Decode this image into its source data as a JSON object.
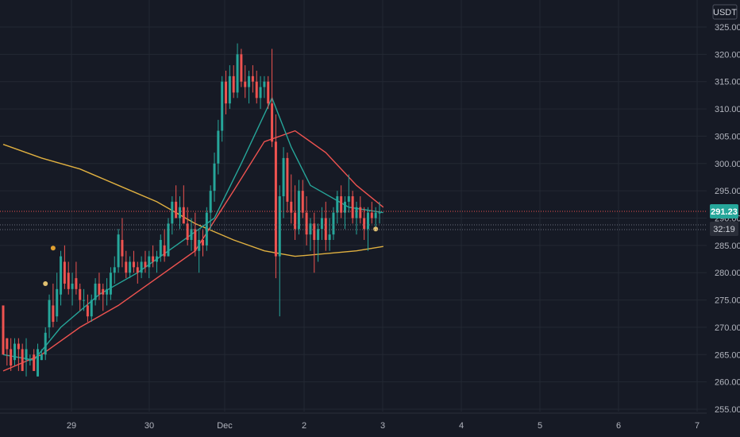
{
  "chart_data": {
    "type": "candlestick",
    "currency": "USDT",
    "ylim": [
      255,
      326
    ],
    "y_ticks": [
      "325.00",
      "320.00",
      "315.00",
      "310.00",
      "305.00",
      "300.00",
      "295.00",
      "290.00",
      "285.00",
      "280.00",
      "275.00",
      "270.00",
      "265.00",
      "260.00",
      "255.00"
    ],
    "x_ticks": [
      "29",
      "30",
      "Dec",
      "2",
      "3",
      "4",
      "5",
      "6",
      "7"
    ],
    "last_price": "291.23",
    "countdown": "32:19",
    "colors": {
      "up": "#26a69a",
      "down": "#ef5350",
      "ma_fast": "#26a69a",
      "ma_mid": "#ef5350",
      "ma_slow": "#e0b040",
      "price_line": "#ef5350",
      "tag_bg": "#26a69a"
    },
    "candles": [
      [
        274.0,
        274.0,
        265.0,
        265.0
      ],
      [
        268.0,
        268.0,
        263.0,
        266.0
      ],
      [
        266.0,
        268.0,
        262.0,
        263.0
      ],
      [
        264.0,
        268.0,
        263.0,
        267.0
      ],
      [
        267.0,
        268.0,
        262.0,
        266.0
      ],
      [
        266.0,
        267.0,
        262.0,
        262.0
      ],
      [
        264.0,
        268.0,
        261.0,
        266.0
      ],
      [
        264.0,
        265.0,
        263.0,
        264.0
      ],
      [
        265.0,
        266.0,
        262.0,
        262.0
      ],
      [
        261.0,
        267.0,
        261.0,
        266.0
      ],
      [
        264.0,
        266.0,
        264.0,
        265.0
      ],
      [
        265.0,
        270.0,
        264.0,
        269.0
      ],
      [
        270.0,
        276.0,
        268.0,
        275.0
      ],
      [
        274.0,
        278.0,
        270.0,
        271.0
      ],
      [
        272.0,
        280.0,
        271.0,
        277.0
      ],
      [
        276.0,
        284.0,
        274.0,
        283.0
      ],
      [
        282.0,
        285.0,
        277.0,
        278.0
      ],
      [
        280.0,
        282.0,
        276.0,
        277.0
      ],
      [
        277.0,
        280.0,
        274.0,
        278.0
      ],
      [
        279.0,
        282.0,
        276.0,
        277.0
      ],
      [
        277.0,
        278.0,
        273.0,
        275.0
      ],
      [
        275.0,
        277.0,
        273.0,
        275.0
      ],
      [
        274.0,
        276.0,
        271.0,
        272.0
      ],
      [
        272.0,
        276.0,
        271.0,
        275.0
      ],
      [
        275.0,
        279.0,
        274.0,
        278.0
      ],
      [
        278.0,
        280.0,
        275.0,
        276.0
      ],
      [
        277.0,
        278.0,
        273.0,
        276.0
      ],
      [
        276.0,
        279.0,
        274.0,
        277.0
      ],
      [
        276.0,
        281.0,
        275.0,
        280.0
      ],
      [
        280.0,
        283.0,
        278.0,
        281.0
      ],
      [
        281.0,
        288.0,
        280.0,
        287.0
      ],
      [
        286.0,
        290.0,
        281.0,
        283.0
      ],
      [
        282.0,
        284.0,
        279.0,
        280.0
      ],
      [
        280.0,
        283.0,
        279.0,
        282.0
      ],
      [
        282.0,
        284.0,
        280.0,
        281.0
      ],
      [
        281.0,
        282.0,
        278.0,
        280.0
      ],
      [
        280.0,
        283.0,
        279.0,
        282.0
      ],
      [
        282.0,
        284.0,
        280.0,
        281.0
      ],
      [
        281.0,
        284.0,
        279.0,
        283.0
      ],
      [
        283.0,
        285.0,
        281.0,
        282.0
      ],
      [
        282.0,
        284.0,
        280.0,
        283.0
      ],
      [
        283.0,
        287.0,
        282.0,
        286.0
      ],
      [
        285.0,
        288.0,
        282.0,
        283.0
      ],
      [
        283.0,
        290.0,
        283.0,
        289.0
      ],
      [
        289.0,
        294.0,
        287.0,
        293.0
      ],
      [
        293.0,
        296.0,
        290.0,
        290.0
      ],
      [
        290.0,
        294.0,
        288.0,
        292.0
      ],
      [
        292.0,
        296.0,
        289.0,
        289.0
      ],
      [
        289.0,
        292.0,
        285.0,
        286.0
      ],
      [
        286.0,
        290.0,
        284.0,
        288.0
      ],
      [
        288.0,
        291.0,
        283.0,
        284.0
      ],
      [
        284.0,
        288.0,
        280.0,
        286.0
      ],
      [
        286.0,
        288.0,
        283.0,
        285.0
      ],
      [
        285.0,
        292.0,
        284.0,
        291.0
      ],
      [
        291.0,
        296.0,
        288.0,
        295.0
      ],
      [
        295.0,
        302.0,
        293.0,
        300.0
      ],
      [
        300.0,
        308.0,
        298.0,
        306.0
      ],
      [
        306.0,
        316.0,
        304.0,
        315.0
      ],
      [
        315.0,
        317.0,
        309.0,
        311.0
      ],
      [
        311.0,
        318.0,
        310.0,
        316.0
      ],
      [
        316.0,
        318.0,
        312.0,
        313.0
      ],
      [
        313.0,
        322.0,
        312.0,
        320.0
      ],
      [
        320.0,
        321.0,
        314.0,
        315.0
      ],
      [
        315.0,
        318.0,
        312.0,
        314.0
      ],
      [
        314.0,
        317.0,
        311.0,
        316.0
      ],
      [
        316.0,
        318.0,
        313.0,
        315.0
      ],
      [
        315.0,
        317.0,
        311.0,
        312.0
      ],
      [
        312.0,
        316.0,
        310.0,
        314.0
      ],
      [
        314.0,
        316.0,
        312.0,
        315.0
      ],
      [
        315.0,
        316.0,
        310.0,
        311.0
      ],
      [
        311.0,
        321.0,
        303.0,
        304.0
      ],
      [
        304.0,
        309.0,
        279.0,
        283.0
      ],
      [
        283.0,
        296.0,
        272.0,
        294.0
      ],
      [
        294.0,
        303.0,
        290.0,
        301.0
      ],
      [
        301.0,
        302.0,
        291.0,
        293.0
      ],
      [
        293.0,
        298.0,
        289.0,
        291.0
      ],
      [
        291.0,
        296.0,
        286.0,
        288.0
      ],
      [
        288.0,
        297.0,
        287.0,
        295.0
      ],
      [
        295.0,
        297.0,
        290.0,
        291.0
      ],
      [
        291.0,
        294.0,
        285.0,
        287.0
      ],
      [
        287.0,
        290.0,
        284.0,
        289.0
      ],
      [
        289.0,
        291.0,
        280.0,
        286.0
      ],
      [
        286.0,
        289.0,
        282.0,
        288.0
      ],
      [
        288.0,
        292.0,
        286.0,
        290.0
      ],
      [
        290.0,
        293.0,
        284.0,
        286.0
      ],
      [
        286.0,
        290.0,
        284.0,
        287.0
      ],
      [
        287.0,
        292.0,
        286.0,
        291.0
      ],
      [
        291.0,
        295.0,
        289.0,
        294.0
      ],
      [
        294.0,
        296.0,
        290.0,
        291.0
      ],
      [
        291.0,
        294.0,
        288.0,
        293.0
      ],
      [
        293.0,
        298.0,
        291.0,
        294.0
      ],
      [
        294.0,
        295.0,
        289.0,
        290.0
      ],
      [
        290.0,
        293.0,
        287.0,
        292.0
      ],
      [
        292.0,
        294.0,
        289.0,
        290.0
      ],
      [
        290.0,
        292.0,
        286.0,
        288.0
      ],
      [
        288.0,
        292.0,
        284.0,
        291.0
      ],
      [
        291.0,
        293.0,
        289.0,
        290.0
      ],
      [
        290.0,
        292.0,
        288.0,
        291.0
      ],
      [
        291.0,
        293.0,
        289.0,
        291.0
      ]
    ],
    "ma_fast": [
      [
        0,
        265
      ],
      [
        8,
        264
      ],
      [
        15,
        270
      ],
      [
        25,
        276
      ],
      [
        35,
        280
      ],
      [
        45,
        285
      ],
      [
        55,
        290
      ],
      [
        62,
        300
      ],
      [
        70,
        312
      ],
      [
        75,
        303
      ],
      [
        80,
        296
      ],
      [
        90,
        292
      ],
      [
        99,
        291
      ]
    ],
    "ma_mid": [
      [
        0,
        262
      ],
      [
        10,
        265
      ],
      [
        20,
        270
      ],
      [
        30,
        274
      ],
      [
        40,
        279
      ],
      [
        50,
        284
      ],
      [
        60,
        295
      ],
      [
        68,
        304
      ],
      [
        76,
        306
      ],
      [
        84,
        302
      ],
      [
        92,
        296
      ],
      [
        99,
        292
      ]
    ],
    "ma_slow": [
      [
        0,
        303.5
      ],
      [
        10,
        301
      ],
      [
        20,
        299
      ],
      [
        30,
        296
      ],
      [
        40,
        293
      ],
      [
        50,
        289
      ],
      [
        60,
        286
      ],
      [
        68,
        284
      ],
      [
        76,
        283
      ],
      [
        84,
        283.5
      ],
      [
        92,
        284
      ],
      [
        99,
        284.8
      ]
    ],
    "markers": [
      {
        "index": 13,
        "price": 284.5,
        "color": "#e0a030"
      },
      {
        "index": 11,
        "price": 278,
        "color": "#e0c070"
      },
      {
        "index": 97,
        "price": 288,
        "color": "#e0c070"
      }
    ]
  }
}
